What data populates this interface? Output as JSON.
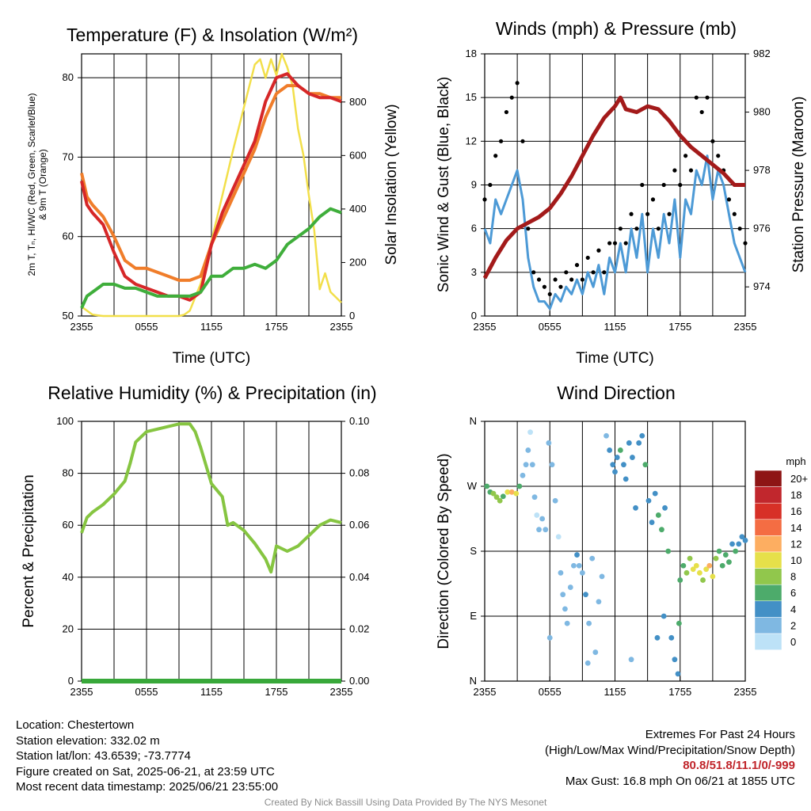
{
  "colors": {
    "red": "#d62728",
    "orange": "#f07d2a",
    "green": "#3fae3b",
    "yellow": "#f2df4a",
    "blue": "#4d9ad6",
    "black": "#000000",
    "maroon": "#a31a1a",
    "rh": "#86c541",
    "precip": "#38a83a"
  },
  "chart_data": [
    {
      "type": "line",
      "title": "Temperature (F) & Insolation (W/m²)",
      "xlabel": "Time (UTC)",
      "ylabel": "2m T, T_d, HI/WC (Red, Green, Scarlet/Blue) & 9m T (Orange)",
      "ylabel_line1": "2m T, Tₙ, HI/WC (Red, Green, Scarlet/Blue)",
      "ylabel_line2": "& 9m T (Orange)",
      "y2label": "Solar Insolation (Yellow)",
      "x_ticks": [
        "2355",
        "0555",
        "1155",
        "1755",
        "2355"
      ],
      "y_ticks": [
        50,
        60,
        70,
        80
      ],
      "y2_ticks": [
        0,
        200,
        400,
        600,
        800
      ],
      "ylim": [
        50,
        83
      ],
      "y2lim": [
        0,
        980
      ],
      "xlim": [
        0,
        24
      ],
      "series": [
        {
          "name": "2m T",
          "color": "red",
          "x": [
            0,
            0.5,
            1,
            2,
            3,
            4,
            5,
            6,
            7,
            8,
            9,
            10,
            11,
            12,
            13,
            14,
            15,
            16,
            17,
            18,
            19,
            20,
            21,
            22,
            23,
            24
          ],
          "values": [
            67,
            64,
            63,
            61.5,
            58,
            55,
            54,
            53.5,
            53,
            52.5,
            52.5,
            52,
            53,
            59,
            63,
            66,
            69,
            72,
            77,
            80,
            80.5,
            79,
            78,
            77.5,
            77.5,
            77
          ]
        },
        {
          "name": "9m T",
          "color": "orange",
          "x": [
            0,
            0.5,
            1,
            2,
            3,
            4,
            5,
            6,
            7,
            8,
            9,
            10,
            11,
            12,
            13,
            14,
            15,
            16,
            17,
            18,
            19,
            20,
            21,
            22,
            23,
            24
          ],
          "values": [
            68,
            65,
            64,
            62.5,
            60,
            57,
            56,
            56,
            55.5,
            55,
            54.5,
            54.5,
            55,
            59,
            62,
            65,
            68,
            71,
            75,
            78,
            79,
            79,
            78,
            78,
            77.5,
            77.5
          ]
        },
        {
          "name": "2m T_d",
          "color": "green",
          "x": [
            0,
            0.5,
            1,
            2,
            3,
            4,
            5,
            6,
            7,
            8,
            9,
            10,
            11,
            12,
            13,
            14,
            15,
            16,
            17,
            18,
            19,
            20,
            21,
            22,
            23,
            24
          ],
          "values": [
            51,
            52.5,
            53,
            54,
            54,
            53.5,
            53.5,
            53,
            52.5,
            52.5,
            52.5,
            52.5,
            53,
            55,
            55,
            56,
            56,
            56.5,
            56,
            57,
            59,
            60,
            61,
            62.5,
            63.5,
            63
          ]
        },
        {
          "name": "Solar Insolation",
          "color": "yellow",
          "axis": "y2",
          "x": [
            0,
            1,
            2,
            4,
            6,
            8,
            9,
            9.5,
            10,
            11,
            12,
            13,
            14,
            15,
            16,
            16.5,
            17,
            17.5,
            18,
            18.5,
            19,
            19.5,
            20,
            20.5,
            21,
            21.5,
            22,
            22.5,
            23,
            24
          ],
          "values": [
            35,
            5,
            0,
            0,
            0,
            0,
            0,
            5,
            20,
            120,
            280,
            450,
            620,
            780,
            940,
            960,
            890,
            960,
            900,
            980,
            930,
            860,
            700,
            600,
            450,
            320,
            100,
            160,
            90,
            50
          ]
        }
      ]
    },
    {
      "type": "line",
      "title": "Winds (mph) & Pressure (mb)",
      "xlabel": "Time (UTC)",
      "ylabel": "Sonic Wind & Gust (Blue, Black)",
      "y2label": "Station Pressure (Maroon)",
      "x_ticks": [
        "2355",
        "0555",
        "1155",
        "1755",
        "2355"
      ],
      "y_ticks": [
        0,
        3,
        6,
        9,
        12,
        15,
        18
      ],
      "y2_ticks": [
        974,
        976,
        978,
        980,
        982
      ],
      "ylim": [
        0,
        18
      ],
      "y2lim": [
        973,
        982
      ],
      "xlim": [
        0,
        24
      ],
      "series": [
        {
          "name": "Sonic Wind",
          "color": "blue",
          "x": [
            0,
            0.5,
            1,
            1.5,
            2,
            2.5,
            3,
            3.5,
            4,
            4.5,
            5,
            5.5,
            6,
            6.5,
            7,
            7.5,
            8,
            8.5,
            9,
            9.5,
            10,
            10.5,
            11,
            11.5,
            12,
            12.5,
            13,
            13.5,
            14,
            14.5,
            15,
            15.5,
            16,
            16.5,
            17,
            17.5,
            18,
            18.5,
            19,
            19.5,
            20,
            20.5,
            21,
            21.5,
            22,
            22.5,
            23,
            23.5,
            24
          ],
          "values": [
            6,
            5,
            8,
            7,
            8,
            9,
            10,
            8,
            4,
            2,
            1,
            1,
            0.5,
            1.5,
            1,
            2,
            1.5,
            2.5,
            1.5,
            3,
            2,
            3.5,
            1.5,
            4,
            3,
            5,
            3,
            6,
            4,
            7,
            3,
            6,
            4,
            7,
            5,
            8,
            4,
            8,
            7,
            10,
            9,
            11,
            8,
            10,
            9,
            7,
            5,
            4,
            3
          ]
        },
        {
          "name": "Gust",
          "color": "black",
          "x": [
            0,
            0.5,
            1,
            1.5,
            2,
            2.5,
            3,
            3.5,
            4,
            4.5,
            5,
            5.5,
            6,
            6.5,
            7,
            7.5,
            8,
            8.5,
            9,
            9.5,
            10,
            10.5,
            11,
            11.5,
            12,
            12.5,
            13,
            13.5,
            14,
            14.5,
            15,
            15.5,
            16,
            16.5,
            17,
            17.5,
            18,
            18.5,
            19,
            19.5,
            20,
            20.5,
            21,
            21.5,
            22,
            22.5,
            23,
            23.5,
            24
          ],
          "values": [
            8,
            9,
            11,
            12,
            14,
            15,
            16,
            12,
            6,
            3,
            2.5,
            2,
            1.5,
            2.5,
            2,
            3,
            2.5,
            3.5,
            2.5,
            4,
            3,
            4.5,
            3,
            5,
            5,
            6,
            5,
            7,
            6,
            9,
            7,
            8,
            6,
            9,
            7,
            10,
            9,
            11,
            10,
            15,
            14,
            15,
            12,
            11,
            10,
            8,
            7,
            6,
            5
          ]
        },
        {
          "name": "Station Pressure",
          "color": "maroon",
          "axis": "y2",
          "x": [
            0,
            1,
            2,
            3,
            4,
            5,
            6,
            7,
            8,
            9,
            10,
            11,
            12,
            12.5,
            13,
            14,
            15,
            16,
            17,
            18,
            19,
            20,
            21,
            22,
            23,
            24
          ],
          "values": [
            974.3,
            975,
            975.6,
            976,
            976.2,
            976.4,
            976.7,
            977.2,
            977.8,
            978.5,
            979.2,
            979.8,
            980.2,
            980.5,
            980.1,
            980,
            980.2,
            980.1,
            979.7,
            979.2,
            978.8,
            978.5,
            978.2,
            977.9,
            977.5,
            977.5
          ]
        }
      ]
    },
    {
      "type": "line",
      "title": "Relative Humidity (%) & Precipitation (in)",
      "ylabel": "Percent & Precipitation",
      "x_ticks": [
        "2355",
        "0555",
        "1155",
        "1755",
        "2355"
      ],
      "y_ticks": [
        0,
        20,
        40,
        60,
        80,
        100
      ],
      "y2_ticks": [
        "0.00",
        "0.02",
        "0.04",
        "0.06",
        "0.08",
        "0.10"
      ],
      "ylim": [
        0,
        100
      ],
      "y2lim": [
        0,
        0.1
      ],
      "xlim": [
        0,
        24
      ],
      "series": [
        {
          "name": "Relative Humidity",
          "color": "rh",
          "x": [
            0,
            0.5,
            1,
            2,
            3,
            4,
            4.5,
            5,
            6,
            7,
            8,
            9,
            10,
            10.5,
            11,
            12,
            13,
            13.5,
            14,
            15,
            16,
            17,
            17.5,
            18,
            19,
            20,
            21,
            22,
            23,
            24
          ],
          "values": [
            57,
            63,
            65,
            68,
            72,
            77,
            84,
            92,
            96,
            97,
            98,
            99,
            99,
            96,
            90,
            76,
            71,
            60,
            61,
            58,
            53,
            47,
            42,
            52,
            50,
            52,
            56,
            60,
            62,
            61
          ]
        },
        {
          "name": "Precipitation",
          "color": "precip",
          "axis": "y2",
          "x": [
            0,
            24
          ],
          "values": [
            0,
            0
          ]
        }
      ]
    },
    {
      "type": "scatter",
      "title": "Wind Direction",
      "ylabel": "Direction (Colored By Speed)",
      "x_ticks": [
        "2355",
        "0555",
        "1155",
        "1755",
        "2355"
      ],
      "y_ticks": [
        "N",
        "E",
        "S",
        "W",
        "N"
      ],
      "ylim": [
        0,
        360
      ],
      "xlim": [
        0,
        24
      ],
      "legend_title": "mph",
      "legend_labels": [
        "20+",
        "18",
        "16",
        "14",
        "12",
        "10",
        "8",
        "6",
        "4",
        "2",
        "0"
      ],
      "legend_colors": [
        "#8e1515",
        "#c1272d",
        "#d73027",
        "#f46d43",
        "#fdae61",
        "#e6e04a",
        "#91c74c",
        "#4dab6b",
        "#4390c6",
        "#7fb8e2",
        "#bde2f7"
      ],
      "points": [
        [
          0.2,
          270,
          5
        ],
        [
          0.5,
          262,
          6
        ],
        [
          0.8,
          260,
          7
        ],
        [
          1.1,
          255,
          7
        ],
        [
          1.4,
          250,
          8
        ],
        [
          1.7,
          256,
          6
        ],
        [
          2.1,
          262,
          10
        ],
        [
          2.5,
          262,
          11
        ],
        [
          2.9,
          260,
          9
        ],
        [
          3.2,
          270,
          5
        ],
        [
          3.5,
          285,
          1
        ],
        [
          3.8,
          300,
          2
        ],
        [
          4.0,
          320,
          1
        ],
        [
          4.2,
          345,
          0
        ],
        [
          4.4,
          300,
          2
        ],
        [
          4.6,
          255,
          1
        ],
        [
          4.8,
          230,
          0
        ],
        [
          5.0,
          210,
          1
        ],
        [
          5.3,
          225,
          2
        ],
        [
          5.6,
          210,
          1
        ],
        [
          5.9,
          330,
          2
        ],
        [
          6.2,
          300,
          1
        ],
        [
          6.5,
          250,
          2
        ],
        [
          6.8,
          200,
          0
        ],
        [
          7.0,
          150,
          1
        ],
        [
          7.2,
          120,
          2
        ],
        [
          7.4,
          100,
          1
        ],
        [
          7.6,
          80,
          2
        ],
        [
          7.9,
          130,
          1
        ],
        [
          8.2,
          160,
          2
        ],
        [
          8.5,
          175,
          3
        ],
        [
          8.7,
          160,
          2
        ],
        [
          9.0,
          150,
          2
        ],
        [
          9.3,
          120,
          3
        ],
        [
          9.6,
          80,
          2
        ],
        [
          9.9,
          170,
          1
        ],
        [
          10.2,
          40,
          1
        ],
        [
          10.5,
          110,
          2
        ],
        [
          10.8,
          145,
          1
        ],
        [
          11.2,
          340,
          2
        ],
        [
          11.5,
          320,
          3
        ],
        [
          11.8,
          300,
          4
        ],
        [
          12.0,
          290,
          3
        ],
        [
          12.2,
          310,
          4
        ],
        [
          12.5,
          320,
          5
        ],
        [
          12.8,
          300,
          4
        ],
        [
          13.0,
          280,
          3
        ],
        [
          13.3,
          330,
          4
        ],
        [
          13.6,
          310,
          4
        ],
        [
          13.9,
          240,
          3
        ],
        [
          14.2,
          330,
          4
        ],
        [
          14.5,
          340,
          4
        ],
        [
          14.8,
          300,
          5
        ],
        [
          15.1,
          250,
          3
        ],
        [
          15.4,
          220,
          4
        ],
        [
          15.7,
          260,
          4
        ],
        [
          16.0,
          230,
          5
        ],
        [
          16.3,
          210,
          5
        ],
        [
          16.6,
          240,
          4
        ],
        [
          16.9,
          180,
          6
        ],
        [
          17.2,
          60,
          4
        ],
        [
          17.5,
          30,
          3
        ],
        [
          17.8,
          10,
          4
        ],
        [
          18.0,
          140,
          5
        ],
        [
          18.3,
          160,
          6
        ],
        [
          18.6,
          150,
          7
        ],
        [
          18.9,
          170,
          8
        ],
        [
          19.2,
          155,
          10
        ],
        [
          19.5,
          160,
          9
        ],
        [
          19.8,
          150,
          10
        ],
        [
          20.1,
          140,
          8
        ],
        [
          20.4,
          155,
          10
        ],
        [
          20.7,
          160,
          11
        ],
        [
          21.0,
          145,
          9
        ],
        [
          21.3,
          170,
          7
        ],
        [
          21.6,
          180,
          6
        ],
        [
          21.9,
          160,
          5
        ],
        [
          22.2,
          175,
          6
        ],
        [
          22.5,
          165,
          5
        ],
        [
          22.8,
          190,
          4
        ],
        [
          23.1,
          180,
          5
        ],
        [
          23.4,
          190,
          4
        ],
        [
          23.7,
          200,
          4
        ],
        [
          24.0,
          195,
          4
        ],
        [
          13.5,
          30,
          2
        ],
        [
          15.9,
          60,
          3
        ],
        [
          16.5,
          90,
          4
        ],
        [
          17.9,
          80,
          5
        ],
        [
          6.0,
          60,
          1
        ],
        [
          9.5,
          25,
          2
        ]
      ]
    }
  ],
  "info": {
    "location": "Location: Chestertown",
    "elevation": "Station elevation: 332.02 m",
    "latlon": "Station lat/lon: 43.6539; -73.7774",
    "created": "Figure created on Sat, 2025-06-21, at 23:59 UTC",
    "recent": "Most recent data timestamp: 2025/06/21 23:55:00"
  },
  "extremes": {
    "heading": "Extremes For Past 24 Hours",
    "subheading": "(High/Low/Max Wind/Precipitation/Snow Depth)",
    "values": "80.8/51.8/11.1/0/-999",
    "gust": "Max Gust: 16.8 mph On 06/21 at 1855 UTC"
  },
  "credit": "Created By Nick Bassill Using Data Provided By The NYS Mesonet"
}
